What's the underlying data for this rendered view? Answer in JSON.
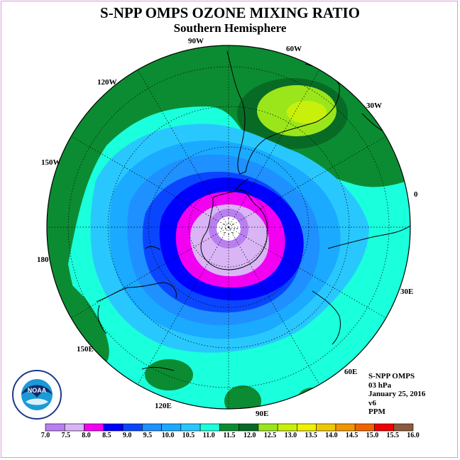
{
  "title": "S-NPP OMPS OZONE MIXING RATIO",
  "subtitle": "Southern Hemisphere",
  "longitude_labels": {
    "lon_90w": "90W",
    "lon_60w": "60W",
    "lon_120w": "120W",
    "lon_30w": "30W",
    "lon_150w": "150W",
    "lon_0": "0",
    "lon_180": "180",
    "lon_30e": "30E",
    "lon_150e": "150E",
    "lon_60e": "60E",
    "lon_120e": "120E",
    "lon_90e": "90E"
  },
  "info": {
    "instrument": "S-NPP OMPS",
    "pressure": "03 hPa",
    "date": "January 25, 2016",
    "version": "v6",
    "units": "PPM"
  },
  "logo": {
    "text": "NOAA",
    "icon": "noaa-logo-icon"
  },
  "colorbar": {
    "labels": [
      "7.0",
      "7.5",
      "8.0",
      "8.5",
      "9.0",
      "9.5",
      "10.0",
      "10.5",
      "11.0",
      "11.5",
      "12.0",
      "12.5",
      "13.0",
      "13.5",
      "14.0",
      "14.5",
      "15.0",
      "15.5",
      "16.0"
    ],
    "colors": [
      "#b97ff0",
      "#d9b5f5",
      "#f200f2",
      "#0000ff",
      "#0a46ff",
      "#1e90ff",
      "#1aaaff",
      "#28c8ff",
      "#1affdc",
      "#0c8c32",
      "#076b25",
      "#9be61a",
      "#c8f00a",
      "#f0f000",
      "#f0c800",
      "#f09600",
      "#f06400",
      "#f00000",
      "#8c5a3c"
    ]
  },
  "map_colors": {
    "ocean_frame": "#ffffff",
    "pole_dots": "#000000"
  }
}
